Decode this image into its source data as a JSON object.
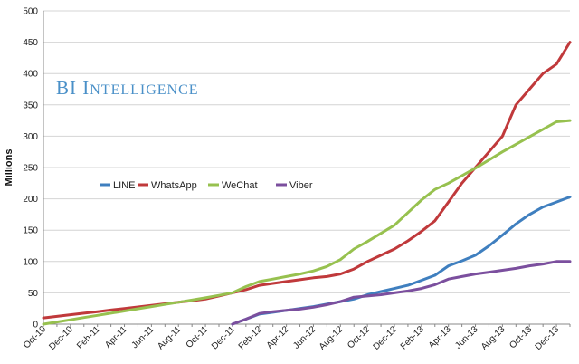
{
  "chart_data": {
    "type": "line",
    "title": "",
    "xlabel": "",
    "ylabel": "Millions",
    "ylim": [
      0,
      500
    ],
    "yticks": [
      0,
      50,
      100,
      150,
      200,
      250,
      300,
      350,
      400,
      450,
      500
    ],
    "grid": "horizontal",
    "legend_position": "center-left",
    "x": [
      "Oct-10",
      "Nov-10",
      "Dec-10",
      "Jan-11",
      "Feb-11",
      "Mar-11",
      "Apr-11",
      "May-11",
      "Jun-11",
      "Jul-11",
      "Aug-11",
      "Sep-11",
      "Oct-11",
      "Nov-11",
      "Dec-11",
      "Jan-12",
      "Feb-12",
      "Mar-12",
      "Apr-12",
      "May-12",
      "Jun-12",
      "Jul-12",
      "Aug-12",
      "Sep-12",
      "Oct-12",
      "Nov-12",
      "Dec-12",
      "Jan-13",
      "Feb-13",
      "Mar-13",
      "Apr-13",
      "May-13",
      "Jun-13",
      "Jul-13",
      "Aug-13",
      "Sep-13",
      "Oct-13",
      "Nov-13",
      "Dec-13",
      "Jan-14"
    ],
    "xtick_labels": [
      "Oct-10",
      "Dec-10",
      "Feb-11",
      "Apr-11",
      "Jun-11",
      "Aug-11",
      "Oct-11",
      "Dec-11",
      "Feb-12",
      "Apr-12",
      "Jun-12",
      "Aug-12",
      "Oct-12",
      "Dec-12",
      "Feb-13",
      "Apr-13",
      "Jun-13",
      "Aug-13",
      "Oct-13",
      "Dec-13"
    ],
    "series": [
      {
        "name": "LINE",
        "color": "#3f7fbf",
        "values": [
          null,
          null,
          null,
          null,
          null,
          null,
          null,
          null,
          null,
          null,
          null,
          null,
          null,
          null,
          0,
          8,
          16,
          19,
          22,
          25,
          28,
          32,
          36,
          40,
          47,
          52,
          57,
          62,
          70,
          78,
          93,
          101,
          110,
          125,
          142,
          160,
          175,
          187,
          195,
          203
        ]
      },
      {
        "name": "WhatsApp",
        "color": "#c0393b",
        "values": [
          10,
          12.5,
          15,
          17.5,
          20,
          22.5,
          25,
          27.5,
          30,
          32.5,
          35,
          37.5,
          40,
          45,
          50,
          55,
          62,
          65,
          68,
          71,
          74,
          76,
          80,
          88,
          100,
          110,
          120,
          133,
          148,
          165,
          195,
          225,
          250,
          275,
          300,
          350,
          375,
          400,
          415,
          450
        ]
      },
      {
        "name": "WeChat",
        "color": "#97c14f",
        "values": [
          0,
          3.5,
          7,
          10.5,
          14,
          17.5,
          21,
          24.5,
          28,
          31.5,
          35,
          38.5,
          42,
          46,
          50,
          60,
          68,
          72,
          76,
          80,
          85,
          92,
          103,
          120,
          132,
          145,
          158,
          178,
          198,
          215,
          225,
          237,
          249,
          262,
          275,
          287,
          299,
          311,
          323,
          325
        ]
      },
      {
        "name": "Viber",
        "color": "#7b4f9e",
        "values": [
          null,
          null,
          null,
          null,
          null,
          null,
          null,
          null,
          null,
          null,
          null,
          null,
          null,
          null,
          0,
          8,
          17,
          20,
          22,
          24,
          27,
          31,
          36,
          43,
          45,
          47,
          50,
          53,
          57,
          63,
          72,
          76,
          80,
          83,
          86,
          89,
          93,
          96,
          100,
          100
        ]
      }
    ]
  },
  "watermark": {
    "text": "BI Intelligence",
    "color": "#4a90c8"
  }
}
